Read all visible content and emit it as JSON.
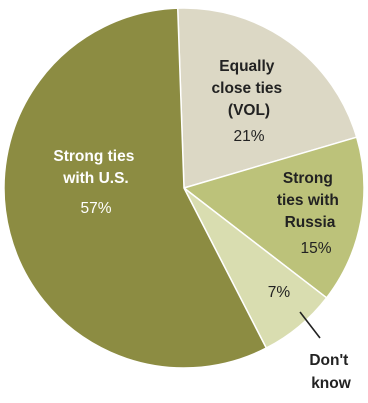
{
  "chart_data": {
    "type": "pie",
    "title": "",
    "slices": [
      {
        "name": "Strong ties with U.S.",
        "label_lines": [
          "Strong ties",
          "with U.S."
        ],
        "value": 57,
        "value_label": "57%",
        "color": "#8c8c42",
        "label_color": "#ffffff"
      },
      {
        "name": "Equally close ties (VOL)",
        "label_lines": [
          "Equally",
          "close ties",
          "(VOL)"
        ],
        "value": 21,
        "value_label": "21%",
        "color": "#dcd8c5",
        "label_color": "#222222"
      },
      {
        "name": "Strong ties with Russia",
        "label_lines": [
          "Strong",
          "ties with",
          "Russia"
        ],
        "value": 15,
        "value_label": "15%",
        "color": "#bcc27a",
        "label_color": "#222222"
      },
      {
        "name": "Don't know",
        "label_lines": [
          "Don't",
          "know"
        ],
        "value": 7,
        "value_label": "7%",
        "color": "#d9ddb0",
        "label_color": "#222222"
      }
    ]
  }
}
